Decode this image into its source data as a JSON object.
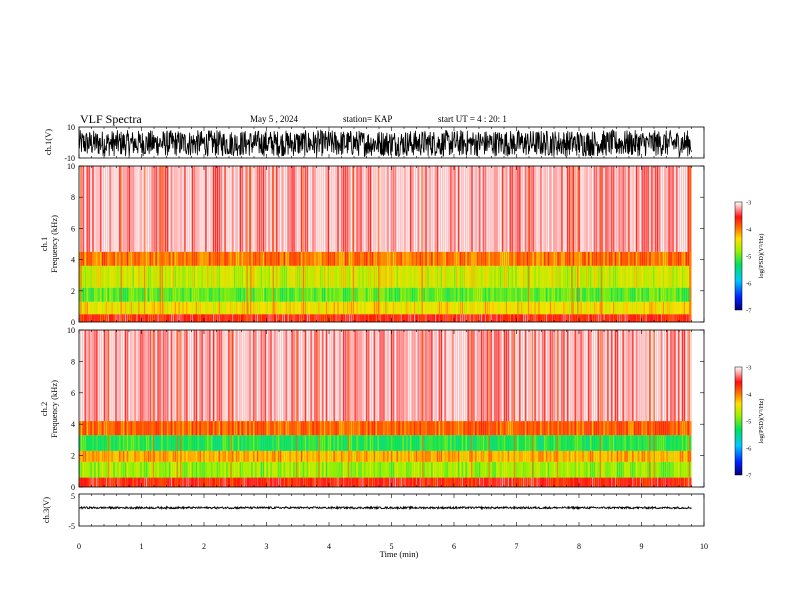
{
  "header": {
    "title": "VLF Spectra",
    "date": "May 5 , 2024",
    "station": "station= KAP",
    "start": "start UT =  4 : 20: 1"
  },
  "chart_data": [
    {
      "type": "line",
      "panel": "ch1-waveform",
      "ylabel": "ch.1(V)",
      "ylim": [
        -10,
        10
      ],
      "yticks": [
        "10",
        "-10"
      ],
      "xlim": [
        0,
        10
      ],
      "data_extent_min": 9.8,
      "amplitude_range": [
        -9,
        8
      ]
    },
    {
      "type": "heatmap",
      "panel": "ch1-spectrogram",
      "ylabel": "ch.1\nFrequency (kHz)",
      "ylim": [
        0,
        10
      ],
      "yticks": [
        "0",
        "2",
        "4",
        "6",
        "8",
        "10"
      ],
      "xlim": [
        0,
        10
      ],
      "data_extent_min": 9.8,
      "bands": [
        {
          "from": 0.0,
          "to": 0.5,
          "level": -3.6
        },
        {
          "from": 0.5,
          "to": 1.3,
          "level": -4.4
        },
        {
          "from": 1.3,
          "to": 2.2,
          "level": -5.0
        },
        {
          "from": 2.2,
          "to": 3.6,
          "level": -4.6
        },
        {
          "from": 3.6,
          "to": 4.5,
          "level": -4.0
        },
        {
          "from": 4.5,
          "to": 10.0,
          "level": -3.2
        }
      ],
      "colorbar": {
        "label": "log(PSD)(V²/Hz)",
        "ticks": [
          "-3",
          "-4",
          "-5",
          "-6",
          "-7"
        ],
        "range": [
          -7,
          -3
        ]
      }
    },
    {
      "type": "heatmap",
      "panel": "ch2-spectrogram",
      "ylabel": "ch.2\nFrequency (kHz)",
      "ylim": [
        0,
        10
      ],
      "yticks": [
        "0",
        "2",
        "4",
        "6",
        "8",
        "10"
      ],
      "xlim": [
        0,
        10
      ],
      "data_extent_min": 9.8,
      "bands": [
        {
          "from": 0.0,
          "to": 0.6,
          "level": -3.6
        },
        {
          "from": 0.6,
          "to": 1.6,
          "level": -4.8
        },
        {
          "from": 1.6,
          "to": 2.3,
          "level": -4.2
        },
        {
          "from": 2.3,
          "to": 3.3,
          "level": -5.2
        },
        {
          "from": 3.3,
          "to": 4.2,
          "level": -3.9
        },
        {
          "from": 4.2,
          "to": 10.0,
          "level": -3.2
        }
      ],
      "colorbar": {
        "label": "log(PSD)(V²/Hz)",
        "ticks": [
          "-3",
          "-4",
          "-5",
          "-6",
          "-7"
        ],
        "range": [
          -7,
          -3
        ]
      }
    },
    {
      "type": "line",
      "panel": "ch3-waveform",
      "ylabel": "ch.3(V)",
      "ylim": [
        -5,
        5
      ],
      "yticks": [
        "5",
        "-5"
      ],
      "xlim": [
        0,
        10
      ],
      "data_extent_min": 9.8,
      "baseline": 0.7,
      "amplitude": 0.3,
      "xlabel": "Time (min)",
      "xticks": [
        "0",
        "1",
        "2",
        "3",
        "4",
        "5",
        "6",
        "7",
        "8",
        "9",
        "10"
      ]
    }
  ]
}
